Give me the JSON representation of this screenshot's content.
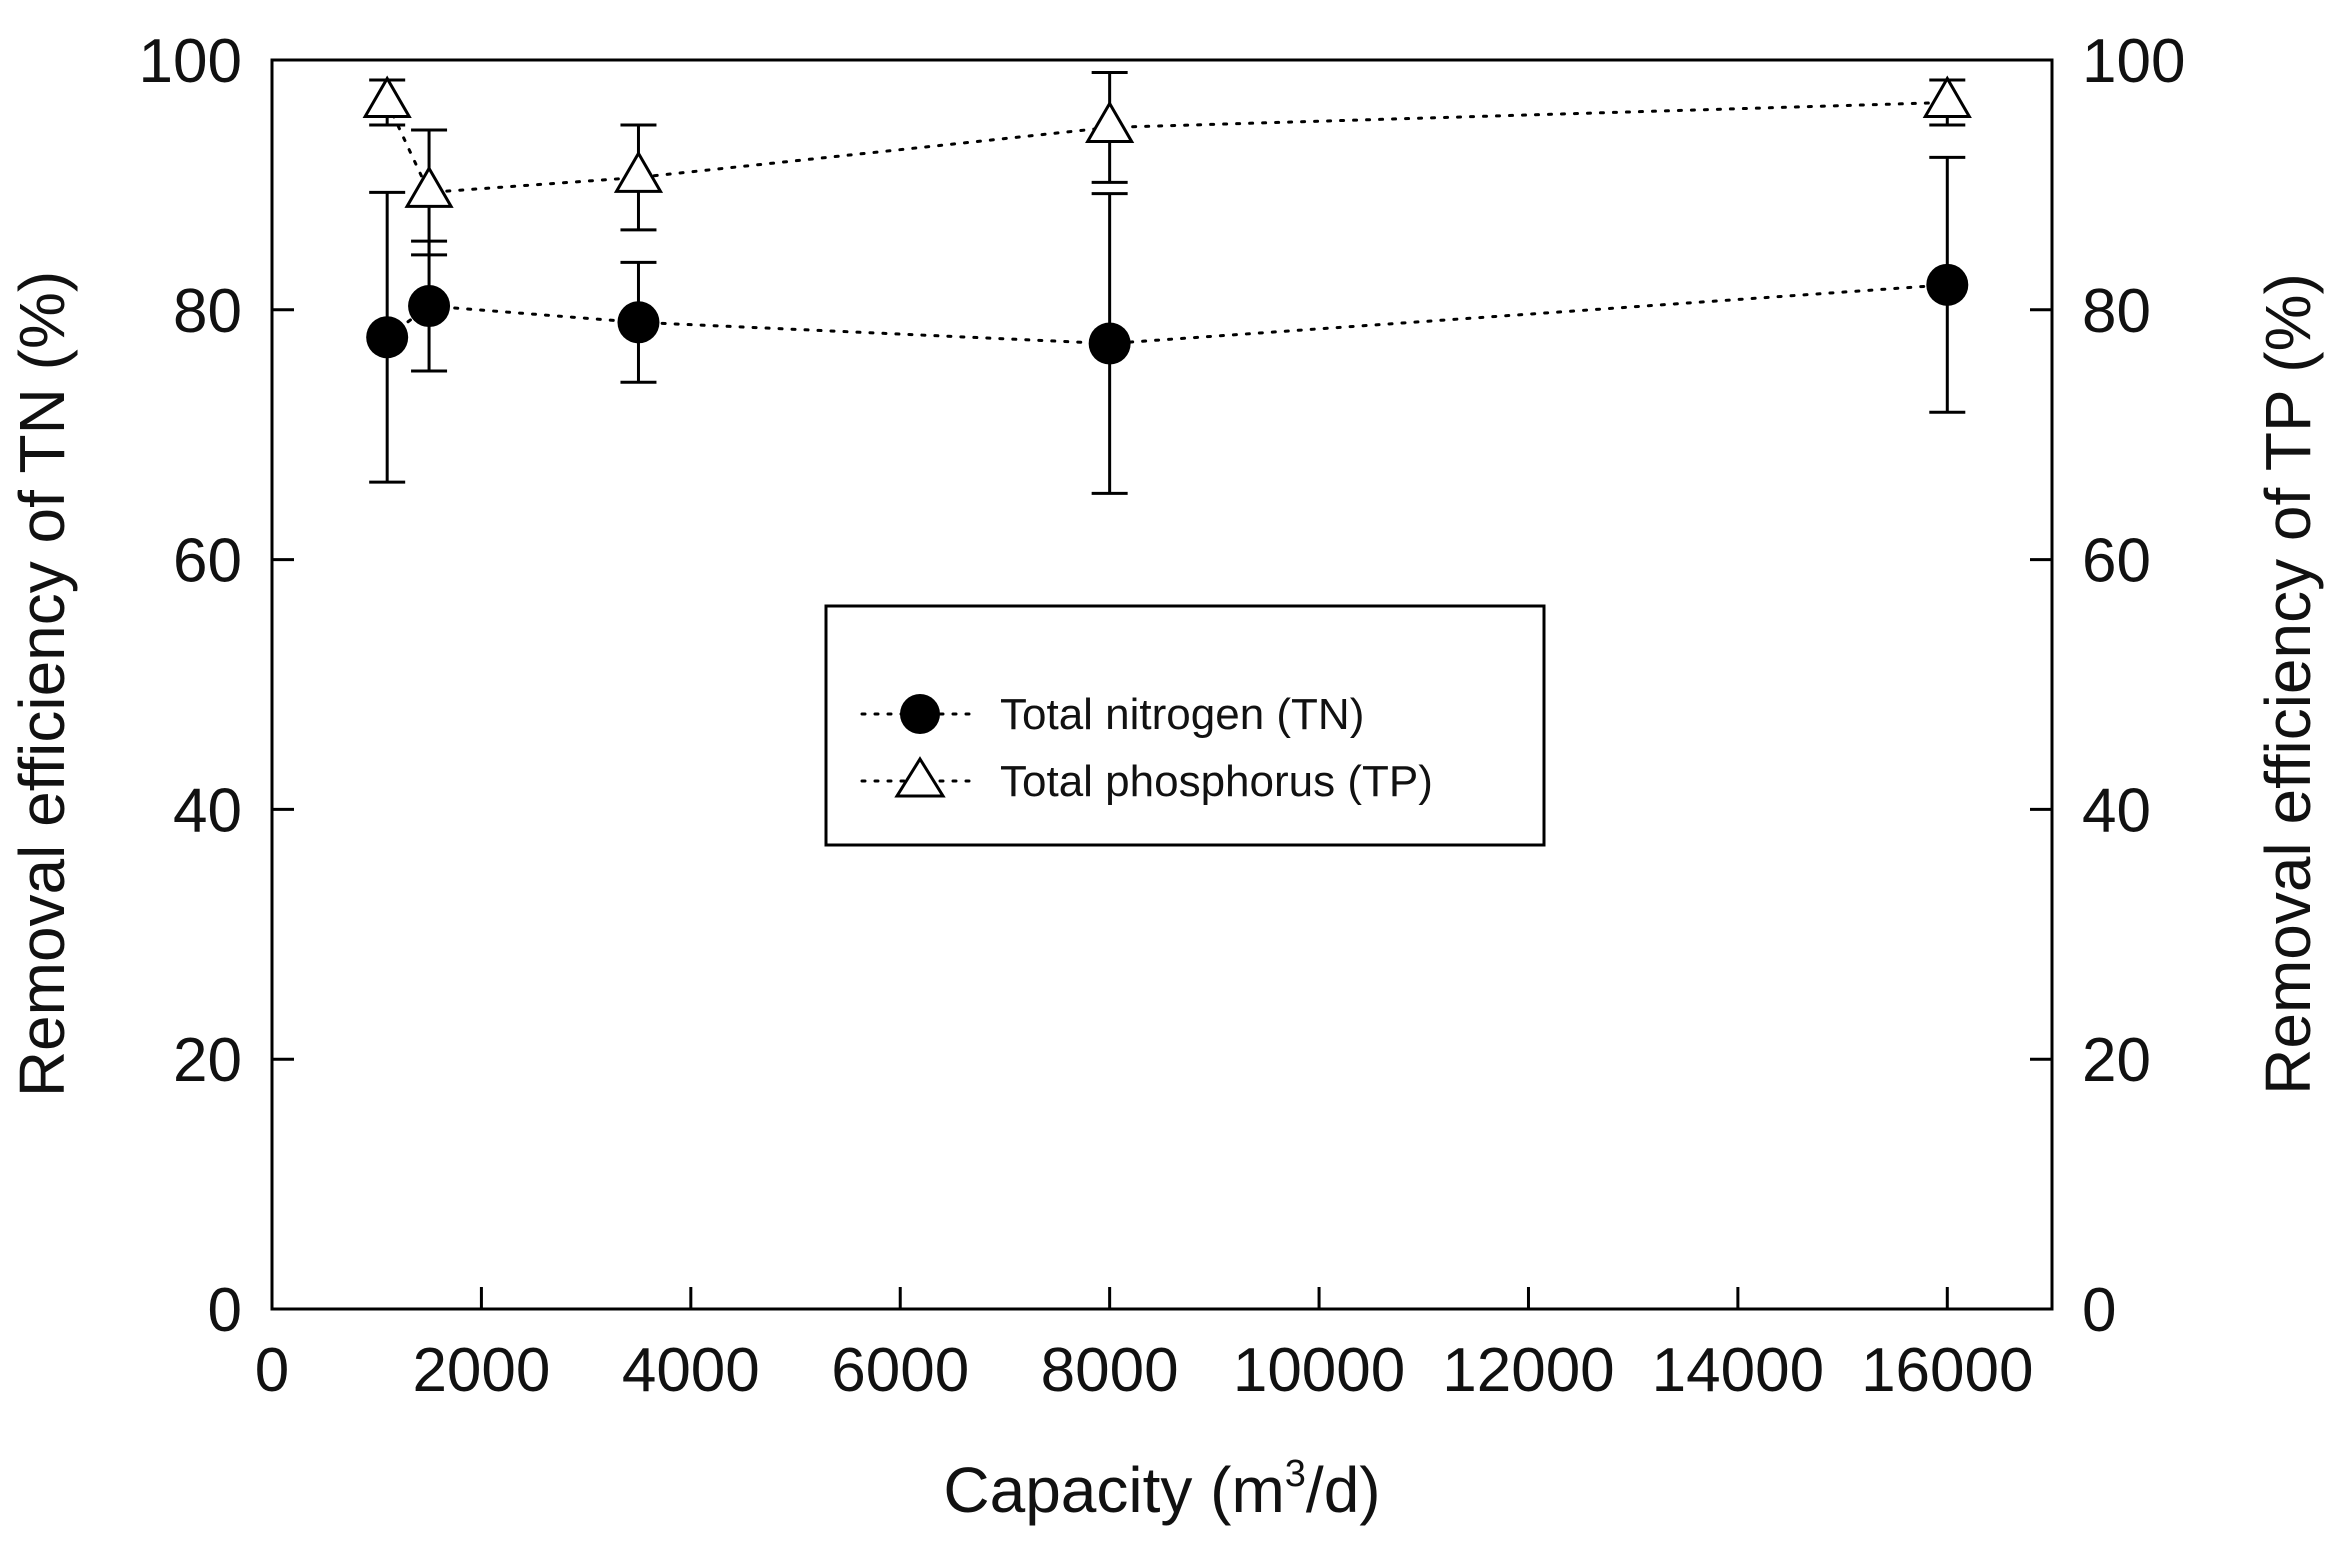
{
  "chart_data": {
    "type": "scatter",
    "title": "",
    "xlabel": {
      "prefix": "Capacity (m",
      "superscript": "3",
      "suffix": "/d)"
    },
    "ylabel_left": "Removal efficiency of TN (%)",
    "ylabel_right": "Removal efficiency of TP (%)",
    "xlim": [
      0,
      17000
    ],
    "ylim": [
      0,
      100
    ],
    "x_ticks": [
      0,
      2000,
      4000,
      6000,
      8000,
      10000,
      12000,
      14000,
      16000
    ],
    "x_tick_labels": [
      "0",
      "2000",
      "4000",
      "6000",
      "8000",
      "10000",
      "12000",
      "14000",
      "16000"
    ],
    "y_ticks": [
      0,
      20,
      40,
      60,
      80,
      100
    ],
    "y_tick_labels": [
      "0",
      "20",
      "40",
      "60",
      "80",
      "100"
    ],
    "grid": false,
    "legend_position": "center",
    "series": [
      {
        "name": "Total nitrogen (TN)",
        "marker": "filled-circle",
        "line_style": "dotted",
        "x": [
          1100,
          1500,
          3500,
          8000,
          16000
        ],
        "y": [
          77.8,
          80.3,
          79.0,
          77.3,
          82.0
        ],
        "error": [
          11.6,
          5.2,
          4.8,
          12.0,
          10.2
        ]
      },
      {
        "name": "Total phosphorus (TP)",
        "marker": "open-triangle",
        "line_style": "dotted",
        "x": [
          1100,
          1500,
          3500,
          8000,
          16000
        ],
        "y": [
          96.6,
          89.4,
          90.6,
          94.6,
          96.6
        ],
        "error": [
          1.8,
          5.0,
          4.2,
          4.4,
          1.8
        ]
      }
    ]
  }
}
